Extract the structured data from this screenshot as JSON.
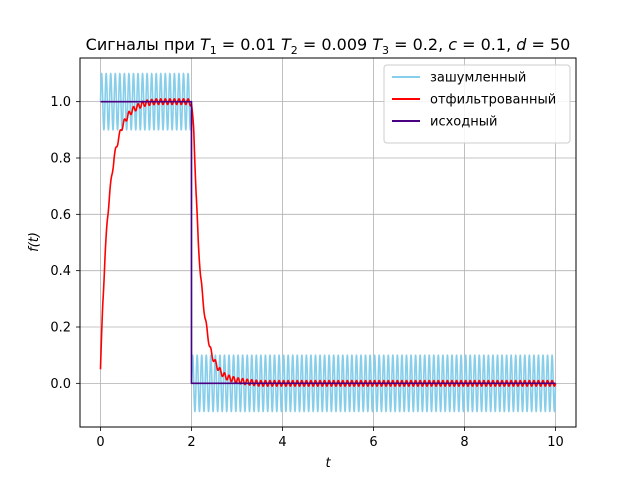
{
  "chart_data": {
    "type": "line",
    "title_plain": "Сигналы при ",
    "title_params": [
      {
        "sym": "T",
        "sub": "1",
        "val": " = 0.01 "
      },
      {
        "sym": "T",
        "sub": "2",
        "val": " = 0.009 "
      },
      {
        "sym": "T",
        "sub": "3",
        "val": " = 0.2, "
      },
      {
        "sym": "c",
        "sub": "",
        "val": " = 0.1, "
      },
      {
        "sym": "d",
        "sub": "",
        "val": " = 50"
      }
    ],
    "xlabel": "t",
    "ylabel": "f(t)",
    "xlim": [
      -0.45,
      10.45
    ],
    "ylim": [
      -0.155,
      1.155
    ],
    "xticks": [
      0,
      2,
      4,
      6,
      8,
      10
    ],
    "xtick_labels": [
      "0",
      "2",
      "4",
      "6",
      "8",
      "10"
    ],
    "yticks": [
      0.0,
      0.2,
      0.4,
      0.6,
      0.8,
      1.0
    ],
    "ytick_labels": [
      "0.0",
      "0.2",
      "0.4",
      "0.6",
      "0.8",
      "1.0"
    ],
    "grid": true,
    "legend_position": "top-right",
    "series": [
      {
        "name": "зашумленный",
        "color": "#87ceeb",
        "kind": "noisy",
        "x_range": [
          0,
          10
        ],
        "step_time": 2,
        "levels": [
          1,
          0
        ],
        "noise_amplitude": 0.1,
        "noise_periods": 100
      },
      {
        "name": "отфильтрованный",
        "color": "#ff0000",
        "kind": "filtered",
        "x": [
          0,
          0.05,
          0.1,
          0.15,
          0.2,
          0.25,
          0.3,
          0.35,
          0.4,
          0.45,
          0.5,
          0.6,
          0.7,
          0.8,
          0.9,
          1.0,
          1.2,
          1.4,
          1.6,
          1.8,
          1.95,
          2.0,
          2.05,
          2.1,
          2.15,
          2.2,
          2.25,
          2.3,
          2.35,
          2.4,
          2.45,
          2.5,
          2.6,
          2.7,
          2.8,
          3.0,
          3.2,
          3.5,
          4.0,
          10.0
        ],
        "y": [
          0.05,
          0.28,
          0.45,
          0.58,
          0.67,
          0.74,
          0.8,
          0.84,
          0.87,
          0.9,
          0.92,
          0.95,
          0.97,
          0.98,
          0.99,
          0.995,
          1.0,
          1.0,
          1.0,
          1.0,
          1.0,
          0.99,
          0.9,
          0.68,
          0.5,
          0.38,
          0.3,
          0.23,
          0.18,
          0.13,
          0.1,
          0.08,
          0.05,
          0.03,
          0.02,
          0.01,
          0.005,
          0.0,
          0.0,
          0.0
        ],
        "ripple_amplitude": 0.01,
        "ripple_periods": 100
      },
      {
        "name": "исходный",
        "color": "#4b0082",
        "kind": "step",
        "x": [
          0,
          2,
          2,
          10
        ],
        "y": [
          1,
          1,
          0,
          0
        ]
      }
    ]
  }
}
